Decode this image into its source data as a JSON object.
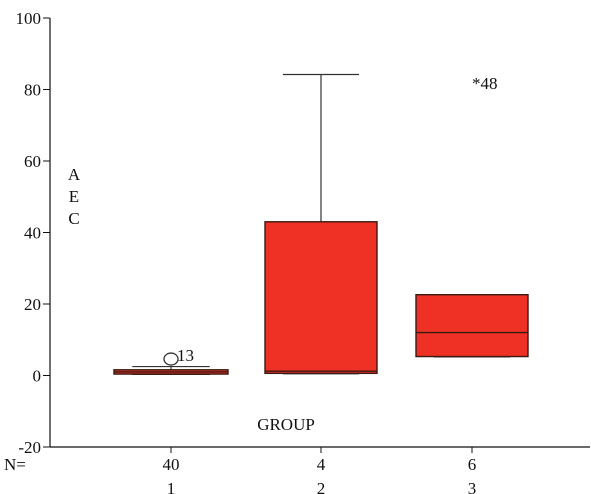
{
  "chart_data": {
    "type": "boxplot",
    "title": "",
    "ylabel_letters": [
      "A",
      "E",
      "C"
    ],
    "xlabel": "GROUP",
    "ylim": [
      -20,
      100
    ],
    "yticks": [
      -20,
      0,
      20,
      40,
      60,
      80,
      100
    ],
    "n_prefix": "N=",
    "groups": [
      {
        "category": "1",
        "n": "40",
        "min": 0.3,
        "q1": 0.4,
        "median": 1.0,
        "q3": 1.6,
        "max": 2.5,
        "outliers": [
          {
            "value": 4.6,
            "label": "13",
            "marker": "circle"
          }
        ]
      },
      {
        "category": "2",
        "n": "4",
        "min": 0.5,
        "q1": 0.6,
        "median": 1.2,
        "q3": 43.0,
        "max": 84.2,
        "outliers": []
      },
      {
        "category": "3",
        "n": "6",
        "min": 5.2,
        "q1": 5.3,
        "median": 12.0,
        "q3": 22.6,
        "max": 22.6,
        "outliers": [
          {
            "value": 81.5,
            "label": "48",
            "marker": "star"
          }
        ]
      }
    ],
    "colors": {
      "box_fill": "#ee3124",
      "box_stroke": "#3a1a14",
      "axis": "#111111"
    }
  }
}
